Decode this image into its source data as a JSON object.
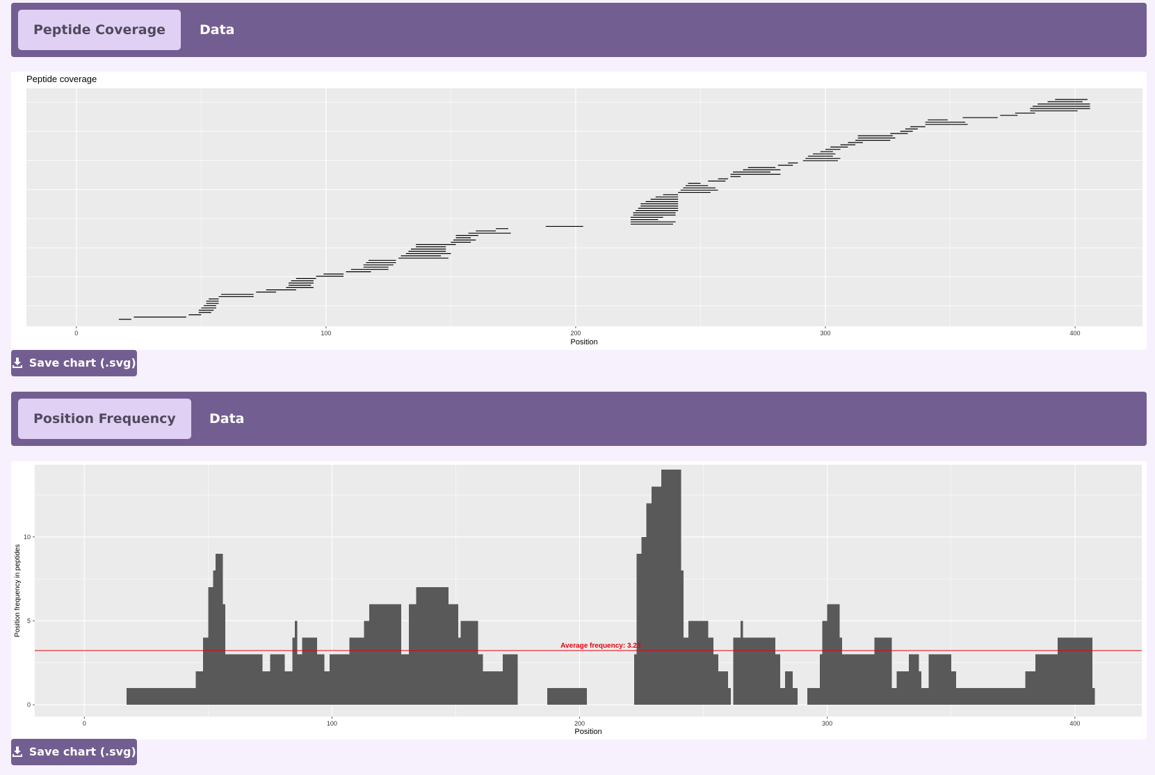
{
  "tabs1": {
    "active": "Peptide Coverage",
    "other": "Data"
  },
  "tabs2": {
    "active": "Position Frequency",
    "other": "Data"
  },
  "save_button_label": "Save chart (.svg)",
  "save_icon": "download-icon",
  "colors": {
    "accent": "#735e92",
    "tab_active_bg": "#e0d1f4",
    "panel_bg": "#ebebeb",
    "bar": "#595959",
    "avg_line": "#e8000b"
  },
  "chart_data": [
    {
      "type": "segments",
      "title": "Peptide coverage",
      "xlabel": "Position",
      "ylabel": "",
      "xlim": [
        -20,
        427
      ],
      "xticks": [
        0,
        100,
        200,
        300,
        400
      ],
      "grid": true,
      "peptides": [
        [
          17,
          22
        ],
        [
          23,
          44
        ],
        [
          45,
          50
        ],
        [
          49,
          54
        ],
        [
          49,
          55
        ],
        [
          50,
          56
        ],
        [
          51,
          56
        ],
        [
          52,
          57
        ],
        [
          52,
          57
        ],
        [
          53,
          57
        ],
        [
          57,
          71
        ],
        [
          58,
          71
        ],
        [
          72,
          80
        ],
        [
          76,
          88
        ],
        [
          84,
          95
        ],
        [
          85,
          94
        ],
        [
          85,
          95
        ],
        [
          86,
          95
        ],
        [
          88,
          96
        ],
        [
          96,
          107
        ],
        [
          99,
          107
        ],
        [
          108,
          118
        ],
        [
          110,
          125
        ],
        [
          115,
          125
        ],
        [
          115,
          127
        ],
        [
          116,
          128
        ],
        [
          117,
          128
        ],
        [
          129,
          149
        ],
        [
          130,
          146
        ],
        [
          132,
          150
        ],
        [
          133,
          148
        ],
        [
          134,
          148
        ],
        [
          136,
          148
        ],
        [
          136,
          152
        ],
        [
          150,
          158
        ],
        [
          151,
          160
        ],
        [
          152,
          158
        ],
        [
          152,
          161
        ],
        [
          157,
          174
        ],
        [
          160,
          168
        ],
        [
          168,
          173
        ],
        [
          188,
          203
        ],
        [
          222,
          239
        ],
        [
          222,
          240
        ],
        [
          222,
          233
        ],
        [
          222,
          235
        ],
        [
          223,
          240
        ],
        [
          223,
          240
        ],
        [
          224,
          241
        ],
        [
          225,
          241
        ],
        [
          226,
          241
        ],
        [
          226,
          241
        ],
        [
          228,
          241
        ],
        [
          230,
          241
        ],
        [
          232,
          241
        ],
        [
          235,
          241
        ],
        [
          241,
          254
        ],
        [
          242,
          257
        ],
        [
          243,
          256
        ],
        [
          244,
          253
        ],
        [
          245,
          250
        ],
        [
          253,
          260
        ],
        [
          257,
          261
        ],
        [
          262,
          266
        ],
        [
          262,
          282
        ],
        [
          263,
          278
        ],
        [
          267,
          282
        ],
        [
          269,
          280
        ],
        [
          281,
          287
        ],
        [
          285,
          289
        ],
        [
          291,
          305
        ],
        [
          292,
          306
        ],
        [
          293,
          303
        ],
        [
          295,
          304
        ],
        [
          298,
          303
        ],
        [
          300,
          306
        ],
        [
          302,
          309
        ],
        [
          306,
          312
        ],
        [
          309,
          315
        ],
        [
          312,
          326
        ],
        [
          313,
          328
        ],
        [
          313,
          327
        ],
        [
          326,
          333
        ],
        [
          330,
          335
        ],
        [
          332,
          337
        ],
        [
          334,
          340
        ],
        [
          340,
          357
        ],
        [
          340,
          356
        ],
        [
          341,
          349
        ],
        [
          355,
          369
        ],
        [
          370,
          377
        ],
        [
          376,
          384
        ],
        [
          382,
          401
        ],
        [
          382,
          406
        ],
        [
          383,
          406
        ],
        [
          385,
          406
        ],
        [
          389,
          403
        ],
        [
          392,
          405
        ]
      ]
    },
    {
      "type": "area",
      "title": "",
      "xlabel": "Position",
      "ylabel": "Position frequency in peptides",
      "xlim": [
        -20,
        427
      ],
      "ylim": [
        -0.7,
        14.3
      ],
      "xticks": [
        0,
        100,
        200,
        300,
        400
      ],
      "yticks": [
        0,
        5,
        10
      ],
      "grid": true,
      "average_frequency": 3.23,
      "average_label": "Average frequency: 3.23",
      "steps": [
        [
          17,
          1
        ],
        [
          45,
          2
        ],
        [
          48,
          4
        ],
        [
          50,
          7
        ],
        [
          52,
          8
        ],
        [
          53,
          9
        ],
        [
          56,
          6
        ],
        [
          57,
          3
        ],
        [
          72,
          2
        ],
        [
          75,
          3
        ],
        [
          81,
          2
        ],
        [
          84,
          4
        ],
        [
          85,
          5
        ],
        [
          86,
          3
        ],
        [
          88,
          4
        ],
        [
          94,
          3
        ],
        [
          97,
          2
        ],
        [
          99,
          3
        ],
        [
          107,
          4
        ],
        [
          113,
          5
        ],
        [
          115,
          6
        ],
        [
          128,
          3
        ],
        [
          131,
          6
        ],
        [
          134,
          7
        ],
        [
          147,
          6
        ],
        [
          151,
          4
        ],
        [
          152,
          5
        ],
        [
          159,
          3
        ],
        [
          161,
          2
        ],
        [
          169,
          3
        ],
        [
          175,
          0
        ],
        [
          187,
          1
        ],
        [
          203,
          0
        ],
        [
          222,
          3
        ],
        [
          223,
          9
        ],
        [
          225,
          10
        ],
        [
          227,
          12
        ],
        [
          229,
          13
        ],
        [
          233,
          14
        ],
        [
          241,
          8
        ],
        [
          242,
          4
        ],
        [
          244,
          5
        ],
        [
          252,
          4
        ],
        [
          254,
          3
        ],
        [
          256,
          2
        ],
        [
          260,
          1
        ],
        [
          261,
          0
        ],
        [
          262,
          4
        ],
        [
          265,
          5
        ],
        [
          266,
          4
        ],
        [
          279,
          3
        ],
        [
          281,
          1
        ],
        [
          283,
          2
        ],
        [
          286,
          1
        ],
        [
          288,
          0
        ],
        [
          292,
          1
        ],
        [
          297,
          3
        ],
        [
          298,
          5
        ],
        [
          300,
          6
        ],
        [
          305,
          4
        ],
        [
          306,
          3
        ],
        [
          313,
          3
        ],
        [
          319,
          4
        ],
        [
          326,
          1
        ],
        [
          328,
          2
        ],
        [
          333,
          3
        ],
        [
          337,
          2
        ],
        [
          338,
          1
        ],
        [
          341,
          3
        ],
        [
          350,
          2
        ],
        [
          352,
          1
        ],
        [
          380,
          2
        ],
        [
          384,
          3
        ],
        [
          393,
          4
        ],
        [
          407,
          1
        ],
        [
          408,
          0
        ]
      ]
    }
  ]
}
